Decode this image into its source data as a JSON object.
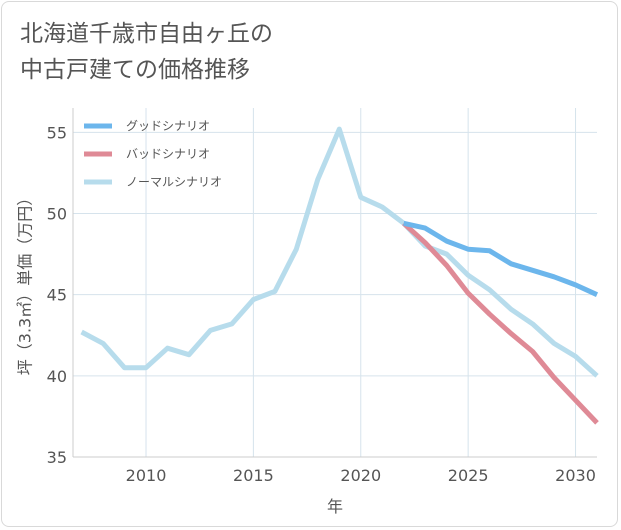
{
  "title_lines": [
    "北海道千歳市自由ヶ丘の",
    "中古戸建ての価格推移"
  ],
  "chart_data": {
    "type": "line",
    "xlabel": "年",
    "ylabel": "坪（3.3㎡）単価（万円）",
    "xlim": [
      2006.6,
      2031
    ],
    "ylim": [
      35,
      56.5
    ],
    "x_ticks": [
      2010,
      2015,
      2020,
      2025,
      2030
    ],
    "y_ticks": [
      35,
      40,
      45,
      50,
      55
    ],
    "grid": true,
    "legend_position": "top-left",
    "series": [
      {
        "name": "グッドシナリオ",
        "color": "#6cb6ec",
        "x": [
          2022,
          2023,
          2024,
          2025,
          2026,
          2027,
          2028,
          2029,
          2030,
          2031
        ],
        "y": [
          49.4,
          49.1,
          48.3,
          47.8,
          47.7,
          46.9,
          46.5,
          46.1,
          45.6,
          45.0
        ]
      },
      {
        "name": "バッドシナリオ",
        "color": "#df8a96",
        "x": [
          2022,
          2023,
          2024,
          2025,
          2026,
          2027,
          2028,
          2029,
          2030,
          2031
        ],
        "y": [
          49.4,
          48.2,
          46.8,
          45.1,
          43.8,
          42.6,
          41.5,
          39.9,
          38.5,
          37.1
        ]
      },
      {
        "name": "ノーマルシナリオ",
        "color": "#b7dcec",
        "x": [
          2007,
          2008,
          2009,
          2010,
          2011,
          2012,
          2013,
          2014,
          2015,
          2016,
          2017,
          2018,
          2019,
          2020,
          2021,
          2022,
          2023,
          2024,
          2025,
          2026,
          2027,
          2028,
          2029,
          2030,
          2031
        ],
        "y": [
          42.7,
          42.0,
          40.5,
          40.5,
          41.7,
          41.3,
          42.8,
          43.2,
          44.7,
          45.2,
          47.8,
          52.1,
          55.2,
          51.0,
          50.4,
          49.4,
          48.0,
          47.5,
          46.2,
          45.3,
          44.1,
          43.2,
          42.0,
          41.2,
          40.0
        ]
      }
    ]
  }
}
